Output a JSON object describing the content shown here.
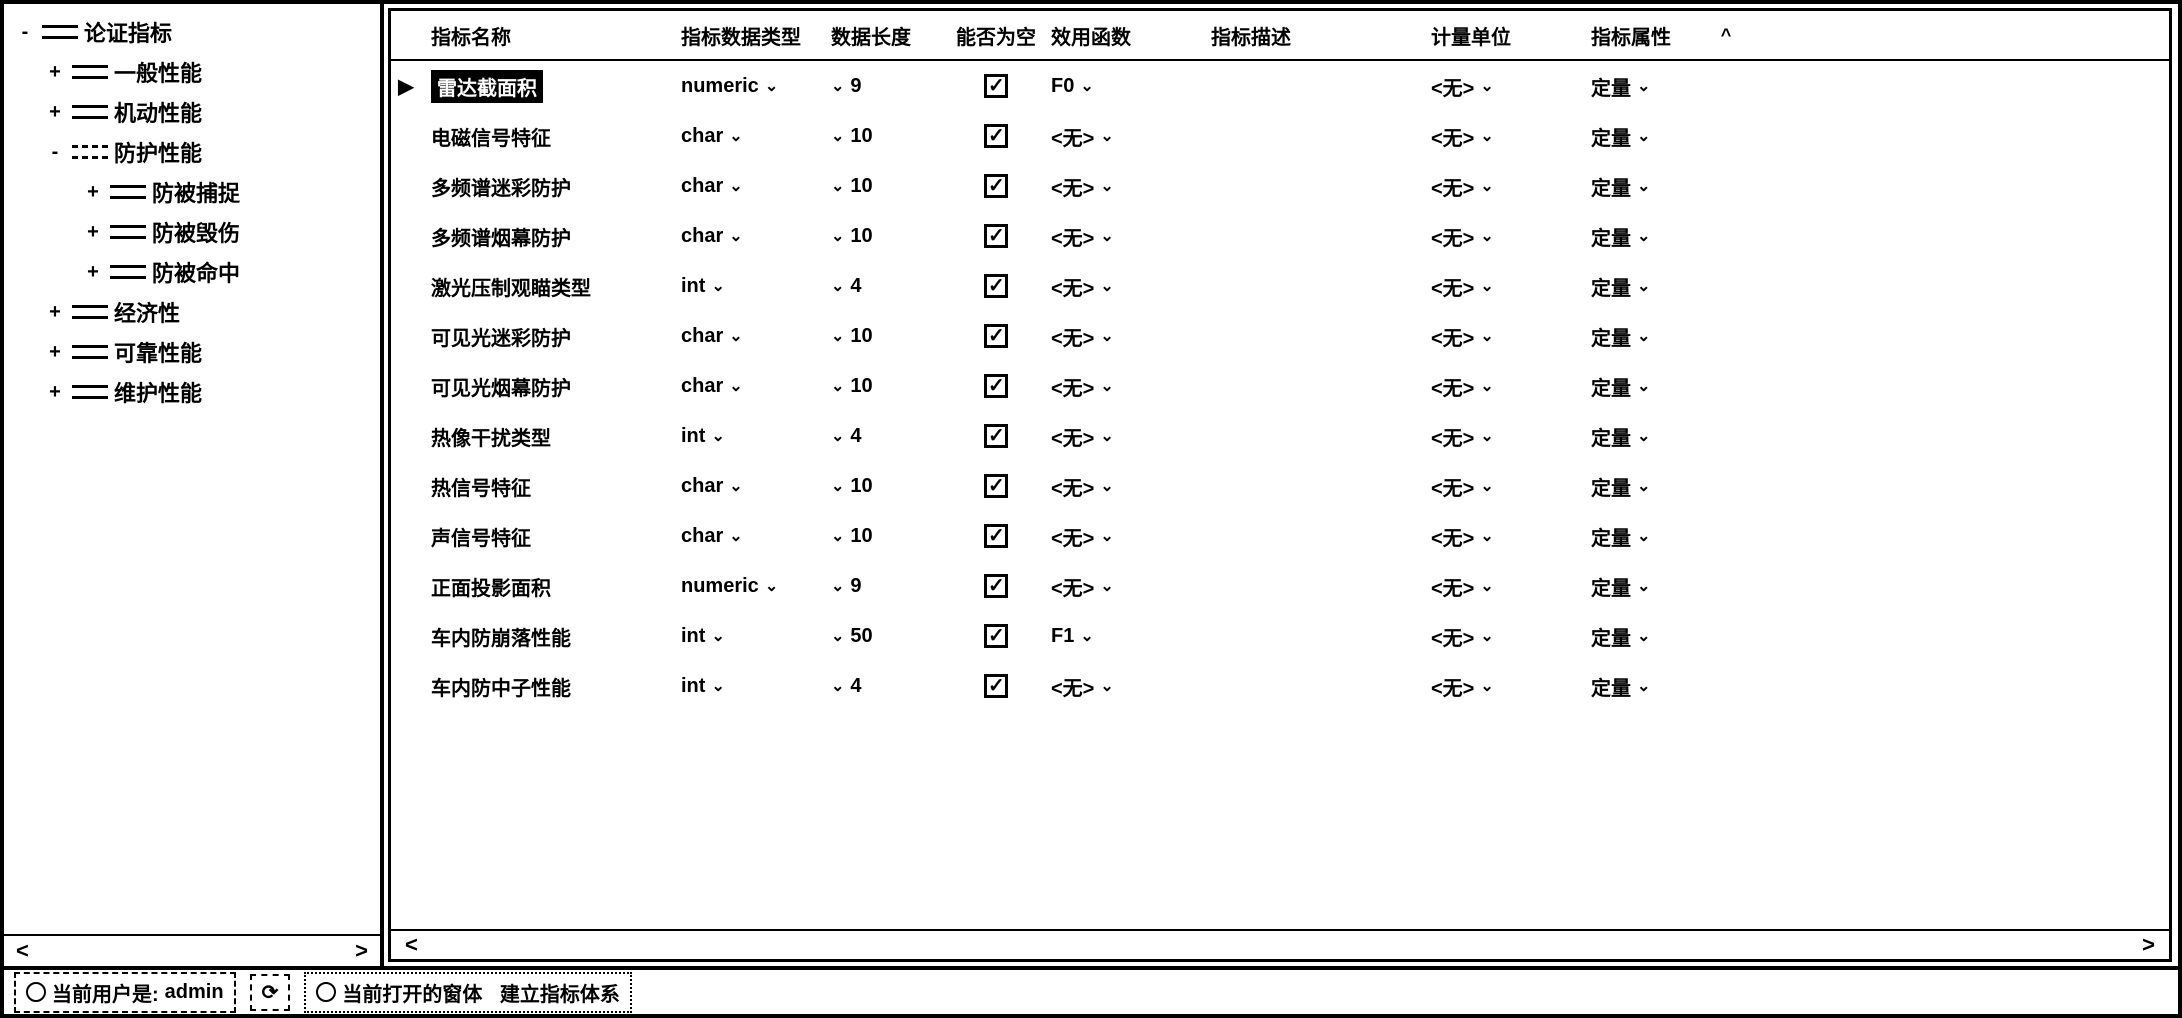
{
  "tree": {
    "root": "论证指标",
    "items": [
      {
        "label": "一般性能",
        "level": 2,
        "toggle": "+"
      },
      {
        "label": "机动性能",
        "level": 2,
        "toggle": "+"
      },
      {
        "label": "防护性能",
        "level": 2,
        "toggle": "-",
        "dashed": true
      },
      {
        "label": "防被捕捉",
        "level": 3,
        "toggle": "+"
      },
      {
        "label": "防被毁伤",
        "level": 3,
        "toggle": "+"
      },
      {
        "label": "防被命中",
        "level": 3,
        "toggle": "+"
      },
      {
        "label": "经济性",
        "level": 2,
        "toggle": "+"
      },
      {
        "label": "可靠性能",
        "level": 2,
        "toggle": "+"
      },
      {
        "label": "维护性能",
        "level": 2,
        "toggle": "+"
      }
    ]
  },
  "grid": {
    "headers": {
      "name": "指标名称",
      "type": "指标数据类型",
      "len": "数据长度",
      "null": "能否为空",
      "func": "效用函数",
      "desc": "指标描述",
      "unit": "计量单位",
      "attr": "指标属性"
    },
    "rows": [
      {
        "name": "雷达截面积",
        "type": "numeric",
        "len": "9",
        "null": true,
        "func": "F0",
        "desc": "",
        "unit": "<无>",
        "attr": "定量",
        "selected": true
      },
      {
        "name": "电磁信号特征",
        "type": "char",
        "len": "10",
        "null": true,
        "func": "<无>",
        "desc": "",
        "unit": "<无>",
        "attr": "定量"
      },
      {
        "name": "多频谱迷彩防护",
        "type": "char",
        "len": "10",
        "null": true,
        "func": "<无>",
        "desc": "",
        "unit": "<无>",
        "attr": "定量"
      },
      {
        "name": "多频谱烟幕防护",
        "type": "char",
        "len": "10",
        "null": true,
        "func": "<无>",
        "desc": "",
        "unit": "<无>",
        "attr": "定量"
      },
      {
        "name": "激光压制观瞄类型",
        "type": "int",
        "len": "4",
        "null": true,
        "func": "<无>",
        "desc": "",
        "unit": "<无>",
        "attr": "定量"
      },
      {
        "name": "可见光迷彩防护",
        "type": "char",
        "len": "10",
        "null": true,
        "func": "<无>",
        "desc": "",
        "unit": "<无>",
        "attr": "定量"
      },
      {
        "name": "可见光烟幕防护",
        "type": "char",
        "len": "10",
        "null": true,
        "func": "<无>",
        "desc": "",
        "unit": "<无>",
        "attr": "定量"
      },
      {
        "name": "热像干扰类型",
        "type": "int",
        "len": "4",
        "null": true,
        "func": "<无>",
        "desc": "",
        "unit": "<无>",
        "attr": "定量"
      },
      {
        "name": "热信号特征",
        "type": "char",
        "len": "10",
        "null": true,
        "func": "<无>",
        "desc": "",
        "unit": "<无>",
        "attr": "定量"
      },
      {
        "name": "声信号特征",
        "type": "char",
        "len": "10",
        "null": true,
        "func": "<无>",
        "desc": "",
        "unit": "<无>",
        "attr": "定量"
      },
      {
        "name": "正面投影面积",
        "type": "numeric",
        "len": "9",
        "null": true,
        "func": "<无>",
        "desc": "",
        "unit": "<无>",
        "attr": "定量"
      },
      {
        "name": "车内防崩落性能",
        "type": "int",
        "len": "50",
        "null": true,
        "func": "F1",
        "desc": "",
        "unit": "<无>",
        "attr": "定量"
      },
      {
        "name": "车内防中子性能",
        "type": "int",
        "len": "4",
        "null": true,
        "func": "<无>",
        "desc": "",
        "unit": "<无>",
        "attr": "定量"
      }
    ]
  },
  "status": {
    "user_label": "当前用户是:",
    "user_value": "admin",
    "window_label": "当前打开的窗体",
    "window_value": "建立指标体系"
  }
}
